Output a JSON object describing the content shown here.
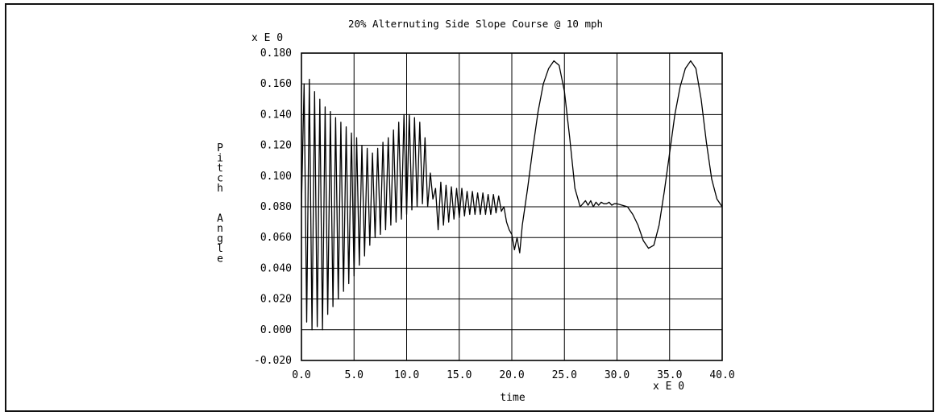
{
  "chart_data": {
    "type": "line",
    "title": "20% Alternuting Side Slope Course @ 10 mph",
    "xlabel": "time",
    "ylabel": "Pitch Angle",
    "x_exponent": "x E  0",
    "y_exponent": "x E  0",
    "xlim": [
      0.0,
      40.0
    ],
    "ylim": [
      -0.02,
      0.18
    ],
    "x_ticks": [
      "0.0",
      "5.0",
      "10.0",
      "15.0",
      "20.0",
      "25.0",
      "30.0",
      "35.0",
      "40.0"
    ],
    "y_ticks": [
      "-0.020",
      "0.000",
      "0.020",
      "0.040",
      "0.060",
      "0.080",
      "0.100",
      "0.120",
      "0.140",
      "0.160",
      "0.180"
    ],
    "grid": true,
    "series": [
      {
        "x": [
          0.0,
          0.25,
          0.5,
          0.75,
          1.0,
          1.25,
          1.5,
          1.75,
          2.0,
          2.25,
          2.5,
          2.75,
          3.0,
          3.25,
          3.5,
          3.75,
          4.0,
          4.25,
          4.5,
          4.75,
          5.0,
          5.25,
          5.5,
          5.75,
          6.0,
          6.25,
          6.5,
          6.75,
          7.0,
          7.25,
          7.5,
          7.75,
          8.0,
          8.25,
          8.5,
          8.75,
          9.0,
          9.25,
          9.5,
          9.75,
          10.0,
          10.25,
          10.5,
          10.75,
          11.0,
          11.25,
          11.5,
          11.75,
          12.0,
          12.25,
          12.5,
          12.75,
          13.0,
          13.25,
          13.5,
          13.75,
          14.0,
          14.25,
          14.5,
          14.75,
          15.0,
          15.25,
          15.5,
          15.75,
          16.0,
          16.25,
          16.5,
          16.75,
          17.0,
          17.25,
          17.5,
          17.75,
          18.0,
          18.25,
          18.5,
          18.75,
          19.0,
          19.25,
          19.5,
          19.75,
          20.0,
          20.25,
          20.5,
          20.75,
          21.0,
          21.5,
          22.0,
          22.5,
          23.0,
          23.5,
          24.0,
          24.5,
          25.0,
          25.5,
          26.0,
          26.5,
          27.0,
          27.25,
          27.5,
          27.75,
          28.0,
          28.25,
          28.5,
          28.75,
          29.0,
          29.25,
          29.5,
          29.75,
          30.0,
          30.5,
          31.0,
          31.5,
          32.0,
          32.5,
          33.0,
          33.5,
          34.0,
          34.5,
          35.0,
          35.5,
          36.0,
          36.5,
          37.0,
          37.5,
          38.0,
          38.5,
          39.0,
          39.5,
          40.0
        ],
        "y": [
          0.08,
          0.16,
          0.005,
          0.163,
          0.0,
          0.155,
          0.002,
          0.15,
          0.0,
          0.145,
          0.01,
          0.142,
          0.015,
          0.138,
          0.02,
          0.135,
          0.025,
          0.132,
          0.03,
          0.128,
          0.035,
          0.125,
          0.042,
          0.12,
          0.048,
          0.118,
          0.055,
          0.115,
          0.06,
          0.118,
          0.062,
          0.122,
          0.065,
          0.125,
          0.068,
          0.13,
          0.07,
          0.135,
          0.072,
          0.14,
          0.075,
          0.14,
          0.078,
          0.138,
          0.08,
          0.135,
          0.082,
          0.125,
          0.08,
          0.102,
          0.085,
          0.092,
          0.065,
          0.096,
          0.068,
          0.094,
          0.07,
          0.093,
          0.072,
          0.092,
          0.073,
          0.092,
          0.074,
          0.09,
          0.075,
          0.09,
          0.075,
          0.089,
          0.075,
          0.089,
          0.075,
          0.088,
          0.075,
          0.088,
          0.076,
          0.087,
          0.077,
          0.08,
          0.07,
          0.065,
          0.062,
          0.052,
          0.06,
          0.05,
          0.068,
          0.092,
          0.118,
          0.142,
          0.16,
          0.17,
          0.175,
          0.172,
          0.155,
          0.125,
          0.092,
          0.08,
          0.084,
          0.081,
          0.084,
          0.08,
          0.083,
          0.081,
          0.083,
          0.082,
          0.082,
          0.083,
          0.081,
          0.082,
          0.082,
          0.081,
          0.08,
          0.075,
          0.068,
          0.058,
          0.053,
          0.055,
          0.068,
          0.09,
          0.115,
          0.14,
          0.158,
          0.17,
          0.175,
          0.17,
          0.15,
          0.122,
          0.098,
          0.085,
          0.08
        ]
      }
    ]
  }
}
